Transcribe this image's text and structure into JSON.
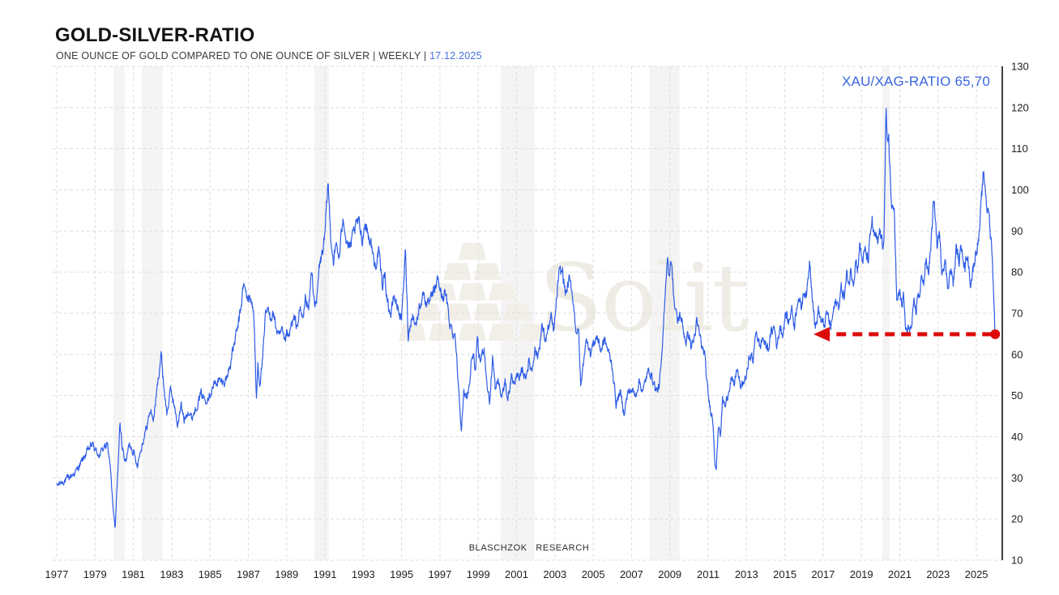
{
  "header": {
    "title": "GOLD-SILVER-RATIO",
    "subtitle": "ONE OUNCE OF GOLD COMPARED TO ONE OUNCE OF SILVER | WEEKLY |",
    "date": "17.12.2025"
  },
  "annotation": {
    "label": "XAU/XAG-RATIO 65,70"
  },
  "watermark": {
    "text": "Solit",
    "icon": "gold-bar-pyramid-icon"
  },
  "footer": {
    "credit": "BLASCHZOK RESEARCH"
  },
  "chart_data": {
    "type": "line",
    "title": "GOLD-SILVER-RATIO",
    "series_name": "XAU/XAG weekly ratio",
    "last_value": 65.7,
    "last_date": "17.12.2025",
    "xlim": [
      1976.79,
      2026.35
    ],
    "ylim": [
      10,
      130
    ],
    "x_ticks": [
      1977,
      1979,
      1981,
      1983,
      1985,
      1987,
      1989,
      1991,
      1993,
      1995,
      1997,
      1999,
      2001,
      2003,
      2005,
      2007,
      2009,
      2011,
      2013,
      2015,
      2017,
      2019,
      2021,
      2023,
      2025
    ],
    "y_ticks": [
      10,
      20,
      30,
      40,
      50,
      60,
      70,
      80,
      90,
      100,
      110,
      120,
      130
    ],
    "grid": true,
    "legend": false,
    "anchors": [
      [
        1977.0,
        28.0
      ],
      [
        1977.25,
        29.0
      ],
      [
        1977.5,
        29.5
      ],
      [
        1977.75,
        30.5
      ],
      [
        1978.0,
        31.5
      ],
      [
        1978.25,
        33.5
      ],
      [
        1978.55,
        36.0
      ],
      [
        1978.85,
        38.2
      ],
      [
        1979.05,
        36.5
      ],
      [
        1979.25,
        35.5
      ],
      [
        1979.45,
        37.5
      ],
      [
        1979.65,
        37.8
      ],
      [
        1979.8,
        33.0
      ],
      [
        1979.95,
        22.0
      ],
      [
        1980.05,
        17.3
      ],
      [
        1980.15,
        28.0
      ],
      [
        1980.3,
        42.5
      ],
      [
        1980.45,
        37.0
      ],
      [
        1980.6,
        33.5
      ],
      [
        1980.8,
        38.5
      ],
      [
        1981.0,
        36.5
      ],
      [
        1981.2,
        33.2
      ],
      [
        1981.45,
        38.0
      ],
      [
        1981.7,
        42.5
      ],
      [
        1981.9,
        46.5
      ],
      [
        1982.05,
        44.0
      ],
      [
        1982.25,
        52.0
      ],
      [
        1982.45,
        60.3
      ],
      [
        1982.6,
        52.0
      ],
      [
        1982.75,
        45.5
      ],
      [
        1982.95,
        51.5
      ],
      [
        1983.1,
        48.5
      ],
      [
        1983.3,
        42.8
      ],
      [
        1983.5,
        47.5
      ],
      [
        1983.65,
        44.0
      ],
      [
        1983.85,
        46.5
      ],
      [
        1984.05,
        44.5
      ],
      [
        1984.3,
        47.5
      ],
      [
        1984.55,
        50.5
      ],
      [
        1984.75,
        49.0
      ],
      [
        1985.0,
        50.5
      ],
      [
        1985.2,
        52.5
      ],
      [
        1985.45,
        53.7
      ],
      [
        1985.7,
        53.0
      ],
      [
        1985.9,
        54.7
      ],
      [
        1986.05,
        57.5
      ],
      [
        1986.25,
        62.2
      ],
      [
        1986.45,
        66.5
      ],
      [
        1986.6,
        70.8
      ],
      [
        1986.75,
        77.0
      ],
      [
        1986.9,
        74.5
      ],
      [
        1987.0,
        73.4
      ],
      [
        1987.15,
        73.8
      ],
      [
        1987.3,
        69.0
      ],
      [
        1987.42,
        48.6
      ],
      [
        1987.5,
        57.5
      ],
      [
        1987.6,
        53.0
      ],
      [
        1987.7,
        57.0
      ],
      [
        1987.8,
        62.0
      ],
      [
        1987.9,
        69.5
      ],
      [
        1988.0,
        70.7
      ],
      [
        1988.15,
        69.0
      ],
      [
        1988.3,
        70.2
      ],
      [
        1988.45,
        66.5
      ],
      [
        1988.6,
        64.0
      ],
      [
        1988.75,
        65.6
      ],
      [
        1988.9,
        62.6
      ],
      [
        1989.0,
        65.2
      ],
      [
        1989.1,
        63.6
      ],
      [
        1989.25,
        67.2
      ],
      [
        1989.4,
        68.5
      ],
      [
        1989.55,
        66.9
      ],
      [
        1989.7,
        70.8
      ],
      [
        1989.85,
        68.5
      ],
      [
        1990.0,
        74.1
      ],
      [
        1990.15,
        70.5
      ],
      [
        1990.3,
        80.7
      ],
      [
        1990.45,
        73.0
      ],
      [
        1990.55,
        71.4
      ],
      [
        1990.7,
        81.3
      ],
      [
        1990.85,
        84.4
      ],
      [
        1991.0,
        88.7
      ],
      [
        1991.16,
        102.0
      ],
      [
        1991.3,
        89.0
      ],
      [
        1991.45,
        82.5
      ],
      [
        1991.6,
        87.0
      ],
      [
        1991.75,
        83.0
      ],
      [
        1991.95,
        94.4
      ],
      [
        1992.1,
        88.0
      ],
      [
        1992.3,
        85.5
      ],
      [
        1992.5,
        89.5
      ],
      [
        1992.75,
        92.6
      ],
      [
        1992.95,
        88.0
      ],
      [
        1993.1,
        92.0
      ],
      [
        1993.3,
        88.5
      ],
      [
        1993.45,
        86.0
      ],
      [
        1993.6,
        81.2
      ],
      [
        1993.8,
        85.1
      ],
      [
        1994.0,
        76.6
      ],
      [
        1994.1,
        79.8
      ],
      [
        1994.3,
        72.0
      ],
      [
        1994.45,
        69.5
      ],
      [
        1994.6,
        74.3
      ],
      [
        1994.8,
        71.4
      ],
      [
        1995.0,
        68.4
      ],
      [
        1995.2,
        85.1
      ],
      [
        1995.35,
        64.1
      ],
      [
        1995.55,
        70.0
      ],
      [
        1995.75,
        67.0
      ],
      [
        1995.95,
        72.0
      ],
      [
        1996.15,
        75.0
      ],
      [
        1996.35,
        71.5
      ],
      [
        1996.55,
        73.5
      ],
      [
        1996.75,
        76.0
      ],
      [
        1996.9,
        78.4
      ],
      [
        1997.1,
        74.0
      ],
      [
        1997.3,
        74.7
      ],
      [
        1997.5,
        68.0
      ],
      [
        1997.65,
        65.5
      ],
      [
        1997.8,
        64.9
      ],
      [
        1997.9,
        57.0
      ],
      [
        1998.05,
        47.2
      ],
      [
        1998.12,
        41.9
      ],
      [
        1998.25,
        50.2
      ],
      [
        1998.4,
        49.8
      ],
      [
        1998.55,
        53.0
      ],
      [
        1998.7,
        61.0
      ],
      [
        1998.85,
        55.6
      ],
      [
        1998.95,
        63.1
      ],
      [
        1999.1,
        58.0
      ],
      [
        1999.3,
        62.1
      ],
      [
        1999.45,
        53.1
      ],
      [
        1999.6,
        48.2
      ],
      [
        1999.75,
        59.4
      ],
      [
        1999.9,
        51.1
      ],
      [
        2000.05,
        53.7
      ],
      [
        2000.2,
        49.4
      ],
      [
        2000.4,
        53.1
      ],
      [
        2000.55,
        49.2
      ],
      [
        2000.75,
        55.1
      ],
      [
        2000.9,
        52.1
      ],
      [
        2001.0,
        56.0
      ],
      [
        2001.15,
        53.1
      ],
      [
        2001.3,
        56.6
      ],
      [
        2001.45,
        54.3
      ],
      [
        2001.65,
        58.2
      ],
      [
        2001.8,
        56.0
      ],
      [
        2001.95,
        61.5
      ],
      [
        2002.1,
        59.4
      ],
      [
        2002.35,
        66.9
      ],
      [
        2002.5,
        63.5
      ],
      [
        2002.8,
        68.8
      ],
      [
        2002.95,
        65.4
      ],
      [
        2003.2,
        79.3
      ],
      [
        2003.4,
        80.3
      ],
      [
        2003.55,
        74.7
      ],
      [
        2003.75,
        77.9
      ],
      [
        2003.9,
        75.4
      ],
      [
        2004.1,
        66.2
      ],
      [
        2004.25,
        64.9
      ],
      [
        2004.35,
        51.7
      ],
      [
        2004.55,
        61.0
      ],
      [
        2004.7,
        64.0
      ],
      [
        2004.85,
        60.0
      ],
      [
        2005.0,
        62.5
      ],
      [
        2005.2,
        64.5
      ],
      [
        2005.4,
        61.0
      ],
      [
        2005.6,
        63.5
      ],
      [
        2005.8,
        60.5
      ],
      [
        2006.0,
        57.0
      ],
      [
        2006.2,
        47.8
      ],
      [
        2006.4,
        51.0
      ],
      [
        2006.6,
        45.8
      ],
      [
        2006.8,
        50.5
      ],
      [
        2007.0,
        51.5
      ],
      [
        2007.2,
        50.0
      ],
      [
        2007.4,
        53.5
      ],
      [
        2007.6,
        51.0
      ],
      [
        2007.8,
        55.0
      ],
      [
        2007.95,
        56.2
      ],
      [
        2008.1,
        54.0
      ],
      [
        2008.3,
        51.0
      ],
      [
        2008.45,
        52.3
      ],
      [
        2008.6,
        60.0
      ],
      [
        2008.75,
        75.0
      ],
      [
        2008.88,
        84.5
      ],
      [
        2008.95,
        78.0
      ],
      [
        2009.05,
        84.1
      ],
      [
        2009.25,
        71.8
      ],
      [
        2009.4,
        67.9
      ],
      [
        2009.55,
        69.8
      ],
      [
        2009.7,
        66.0
      ],
      [
        2009.85,
        63.1
      ],
      [
        2010.0,
        65.1
      ],
      [
        2010.1,
        61.9
      ],
      [
        2010.25,
        63.5
      ],
      [
        2010.4,
        67.5
      ],
      [
        2010.55,
        65.0
      ],
      [
        2010.7,
        61.1
      ],
      [
        2010.8,
        60.6
      ],
      [
        2010.95,
        52.3
      ],
      [
        2011.05,
        48.4
      ],
      [
        2011.15,
        46.4
      ],
      [
        2011.25,
        43.8
      ],
      [
        2011.35,
        34.4
      ],
      [
        2011.42,
        32.4
      ],
      [
        2011.55,
        43.2
      ],
      [
        2011.65,
        40.5
      ],
      [
        2011.75,
        49.1
      ],
      [
        2011.9,
        47.2
      ],
      [
        2012.05,
        51.0
      ],
      [
        2012.2,
        54.3
      ],
      [
        2012.35,
        52.0
      ],
      [
        2012.5,
        56.9
      ],
      [
        2012.7,
        51.7
      ],
      [
        2012.85,
        53.1
      ],
      [
        2013.0,
        55.0
      ],
      [
        2013.2,
        60.3
      ],
      [
        2013.35,
        58.4
      ],
      [
        2013.5,
        66.2
      ],
      [
        2013.7,
        61.5
      ],
      [
        2013.85,
        64.3
      ],
      [
        2014.0,
        62.0
      ],
      [
        2014.15,
        61.5
      ],
      [
        2014.3,
        65.6
      ],
      [
        2014.45,
        66.6
      ],
      [
        2014.6,
        62.0
      ],
      [
        2014.75,
        67.0
      ],
      [
        2014.9,
        65.0
      ],
      [
        2015.05,
        70.3
      ],
      [
        2015.2,
        67.4
      ],
      [
        2015.35,
        71.6
      ],
      [
        2015.5,
        67.0
      ],
      [
        2015.7,
        74.6
      ],
      [
        2015.85,
        71.0
      ],
      [
        2016.0,
        75.6
      ],
      [
        2016.15,
        74.6
      ],
      [
        2016.3,
        83.1
      ],
      [
        2016.45,
        74.0
      ],
      [
        2016.6,
        66.1
      ],
      [
        2016.75,
        70.8
      ],
      [
        2016.9,
        68.0
      ],
      [
        2017.05,
        66.9
      ],
      [
        2017.2,
        70.2
      ],
      [
        2017.4,
        66.5
      ],
      [
        2017.55,
        70.8
      ],
      [
        2017.7,
        73.0
      ],
      [
        2017.8,
        71.4
      ],
      [
        2017.95,
        76.3
      ],
      [
        2018.1,
        73.9
      ],
      [
        2018.25,
        79.6
      ],
      [
        2018.35,
        77.2
      ],
      [
        2018.45,
        80.5
      ],
      [
        2018.6,
        77.9
      ],
      [
        2018.7,
        83.3
      ],
      [
        2018.8,
        80.5
      ],
      [
        2018.9,
        86.6
      ],
      [
        2019.05,
        82.8
      ],
      [
        2019.2,
        85.1
      ],
      [
        2019.35,
        82.6
      ],
      [
        2019.55,
        93.0
      ],
      [
        2019.65,
        88.5
      ],
      [
        2019.75,
        88.4
      ],
      [
        2019.85,
        86.6
      ],
      [
        2019.95,
        90.3
      ],
      [
        2020.1,
        86.0
      ],
      [
        2020.18,
        90.0
      ],
      [
        2020.28,
        118.6
      ],
      [
        2020.35,
        110.0
      ],
      [
        2020.42,
        114.0
      ],
      [
        2020.55,
        97.0
      ],
      [
        2020.65,
        94.0
      ],
      [
        2020.72,
        95.3
      ],
      [
        2020.85,
        72.0
      ],
      [
        2021.0,
        75.4
      ],
      [
        2021.1,
        71.8
      ],
      [
        2021.2,
        74.0
      ],
      [
        2021.3,
        66.5
      ],
      [
        2021.4,
        64.9
      ],
      [
        2021.5,
        67.0
      ],
      [
        2021.6,
        66.0
      ],
      [
        2021.75,
        72.0
      ],
      [
        2021.85,
        70.2
      ],
      [
        2021.95,
        75.4
      ],
      [
        2022.05,
        73.7
      ],
      [
        2022.15,
        80.0
      ],
      [
        2022.25,
        77.3
      ],
      [
        2022.35,
        82.5
      ],
      [
        2022.5,
        80.0
      ],
      [
        2022.65,
        88.0
      ],
      [
        2022.75,
        96.0
      ],
      [
        2022.85,
        94.4
      ],
      [
        2022.95,
        85.8
      ],
      [
        2023.05,
        89.8
      ],
      [
        2023.2,
        80.5
      ],
      [
        2023.35,
        83.1
      ],
      [
        2023.5,
        76.6
      ],
      [
        2023.65,
        80.5
      ],
      [
        2023.8,
        77.3
      ],
      [
        2023.95,
        85.8
      ],
      [
        2024.1,
        82.5
      ],
      [
        2024.25,
        87.0
      ],
      [
        2024.4,
        80.5
      ],
      [
        2024.5,
        85.0
      ],
      [
        2024.7,
        77.3
      ],
      [
        2024.8,
        80.0
      ],
      [
        2024.95,
        84.4
      ],
      [
        2025.05,
        86.7
      ],
      [
        2025.15,
        89.0
      ],
      [
        2025.35,
        103.3
      ],
      [
        2025.45,
        101.6
      ],
      [
        2025.55,
        95.0
      ],
      [
        2025.62,
        97.0
      ],
      [
        2025.7,
        90.3
      ],
      [
        2025.8,
        86.1
      ],
      [
        2025.88,
        78.0
      ],
      [
        2025.93,
        70.8
      ],
      [
        2025.96,
        65.7
      ]
    ],
    "recession_bands": [
      [
        1979.96,
        1980.55
      ],
      [
        1981.44,
        1982.54
      ],
      [
        1990.45,
        1991.21
      ],
      [
        2000.17,
        2001.95
      ],
      [
        2007.95,
        2009.51
      ],
      [
        2020.09,
        2020.47
      ]
    ],
    "arrow": {
      "value": 64.9,
      "from_year": 2016.5,
      "to_year": 2025.98,
      "style": "dashed-red-left-arrow"
    },
    "colors": {
      "line": "#2d5ce6",
      "arrow": "#dd0a0a",
      "band": "#f4f4f4",
      "grid": "#dedede",
      "axis": "#000000",
      "accent_blue": "#3a66e0",
      "date_blue": "#4472d8",
      "watermark_text": "#efece5",
      "watermark_icon": "#f2efe9"
    }
  }
}
